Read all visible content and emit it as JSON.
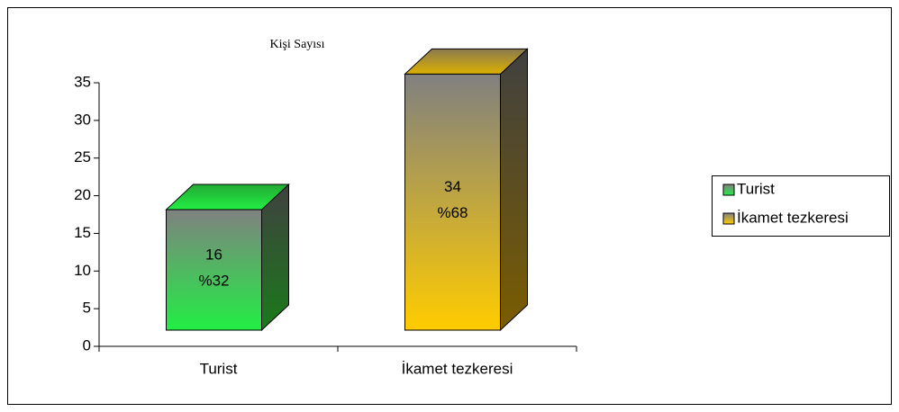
{
  "chart_data": {
    "type": "bar3d",
    "title": "Kişi Sayısı",
    "categories": [
      "Turist",
      "İkamet tezkeresi"
    ],
    "values": [
      16,
      34
    ],
    "percentages": [
      32,
      68
    ],
    "percentage_labels": [
      "%32",
      "%68"
    ],
    "colors": [
      "#22ee44",
      "#ffcc00"
    ],
    "ylim": [
      0,
      35
    ],
    "yticks": [
      0,
      5,
      10,
      15,
      20,
      25,
      30,
      35
    ],
    "grid": false,
    "legend": "right"
  }
}
